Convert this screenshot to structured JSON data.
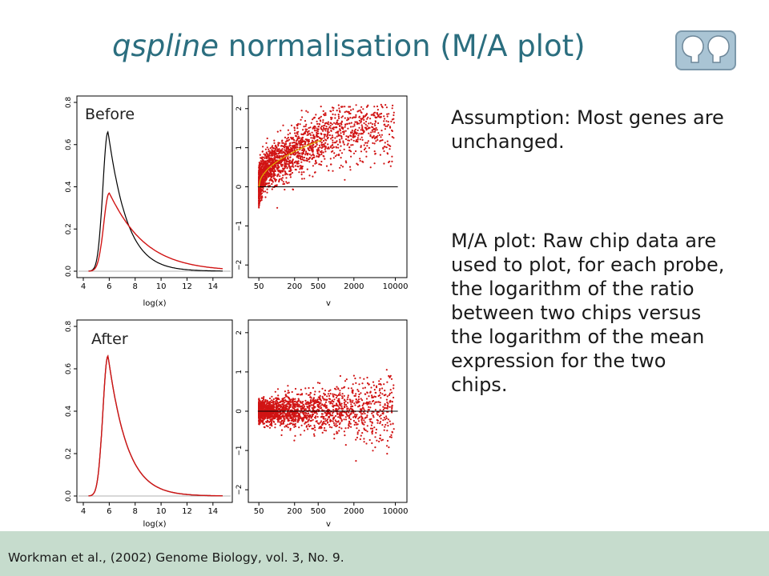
{
  "slide": {
    "title_italic": "qspline",
    "title_rest": " normalisation (M/A plot)",
    "paragraph1": "Assumption: Most genes are unchanged.",
    "paragraph2": "M/A plot: Raw chip data are used to plot, for each probe, the logarithm of the ratio between two chips versus the logarithm of the mean expression for the two chips.",
    "citation": "Workman et al., (2002) Genome Biology, vol. 3, No. 9."
  },
  "logo": {
    "icon": "two-heads-logo-icon"
  },
  "colors": {
    "title": "#2b6e7f",
    "footer_bg": "#c6dccd",
    "red": "#d11414",
    "logo_fill": "#a9c4d4"
  },
  "panels": {
    "before_label": "Before",
    "after_label": "After"
  },
  "chart_data": [
    {
      "type": "line",
      "panel": "before-density",
      "xlabel": "log(x)",
      "xlim": [
        4,
        15
      ],
      "ylim": [
        0,
        0.8
      ],
      "x_ticks": [
        "4",
        "6",
        "8",
        "10",
        "12",
        "14"
      ],
      "y_ticks": [
        "0.0",
        "0.2",
        "0.4",
        "0.6",
        "0.8"
      ],
      "series": [
        {
          "color": "#000000",
          "peak_x": 5.9,
          "peak_y": 0.66
        },
        {
          "color": "#d11414",
          "peak_x": 6.0,
          "peak_y": 0.37
        }
      ]
    },
    {
      "type": "scatter",
      "panel": "before-ma",
      "xlabel": "v",
      "x_scale": "log",
      "xlim": [
        40,
        13000
      ],
      "ylim": [
        -2.2,
        2.2
      ],
      "x_ticks": [
        "50",
        "200",
        "500",
        "2000",
        "10000"
      ],
      "y_ticks": [
        "-2",
        "-1",
        "0",
        "1",
        "2"
      ],
      "reference_line_y": 0,
      "trend": "curved-upward"
    },
    {
      "type": "line",
      "panel": "after-density",
      "xlabel": "log(x)",
      "xlim": [
        4,
        15
      ],
      "ylim": [
        0,
        0.8
      ],
      "x_ticks": [
        "4",
        "6",
        "8",
        "10",
        "12",
        "14"
      ],
      "y_ticks": [
        "0.0",
        "0.2",
        "0.4",
        "0.6",
        "0.8"
      ],
      "series": [
        {
          "color": "#000000",
          "peak_x": 5.9,
          "peak_y": 0.66
        },
        {
          "color": "#d11414",
          "peak_x": 5.9,
          "peak_y": 0.66
        }
      ]
    },
    {
      "type": "scatter",
      "panel": "after-ma",
      "xlabel": "v",
      "x_scale": "log",
      "xlim": [
        40,
        13000
      ],
      "ylim": [
        -2.2,
        2.2
      ],
      "x_ticks": [
        "50",
        "200",
        "500",
        "2000",
        "10000"
      ],
      "y_ticks": [
        "-2",
        "-1",
        "0",
        "1",
        "2"
      ],
      "reference_line_y": 0,
      "trend": "centered"
    }
  ]
}
